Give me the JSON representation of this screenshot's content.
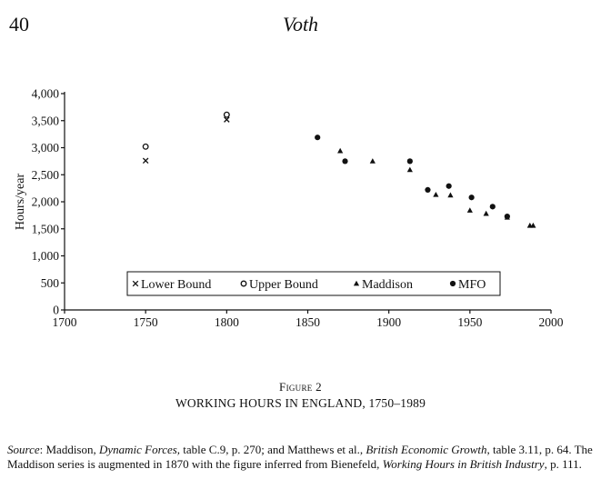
{
  "page": {
    "number": "40",
    "running_head": "Voth"
  },
  "figure": {
    "label": "Figure 2",
    "title": "WORKING HOURS IN ENGLAND, 1750–1989"
  },
  "source": {
    "lead": "Source",
    "t1": ": Maddison, ",
    "i1": "Dynamic Forces,",
    "t2": " table C.9, p. 270; and Matthews et al., ",
    "i2": "British Economic Growth",
    "t3": ", table 3.11, p. 64. The Maddison series is augmented in 1870 with the figure inferred from Bienefeld, ",
    "i3": "Working Hours in British Industry",
    "t4": ", p. 111."
  },
  "chart_data": {
    "type": "scatter",
    "xlim": [
      1700,
      2000
    ],
    "ylim": [
      0,
      4000
    ],
    "x_ticks": [
      1700,
      1750,
      1800,
      1850,
      1900,
      1950,
      2000
    ],
    "y_ticks": [
      0,
      500,
      1000,
      1500,
      2000,
      2500,
      3000,
      3500,
      4000
    ],
    "y_tick_labels": [
      "0",
      "500",
      "1,000",
      "1,500",
      "2,000",
      "2,500",
      "3,000",
      "3,500",
      "4,000"
    ],
    "ylabel": "Hours/year",
    "xlabel": "",
    "grid": false,
    "legend_position": "bottom-center",
    "series": [
      {
        "name": "Lower Bound",
        "marker": "cross",
        "x": [
          1750,
          1800
        ],
        "y": [
          2760,
          3520
        ]
      },
      {
        "name": "Upper Bound",
        "marker": "circle-open",
        "x": [
          1750,
          1800
        ],
        "y": [
          3020,
          3610
        ]
      },
      {
        "name": "Maddison",
        "marker": "triangle",
        "x": [
          1870,
          1890,
          1913,
          1929,
          1938,
          1950,
          1960,
          1973,
          1987,
          1989
        ],
        "y": [
          2940,
          2750,
          2590,
          2130,
          2120,
          1840,
          1780,
          1710,
          1560,
          1560
        ]
      },
      {
        "name": "MFO",
        "marker": "dot",
        "x": [
          1856,
          1873,
          1913,
          1924,
          1937,
          1951,
          1964,
          1973
        ],
        "y": [
          3190,
          2750,
          2750,
          2220,
          2290,
          2080,
          1910,
          1730
        ]
      }
    ]
  }
}
